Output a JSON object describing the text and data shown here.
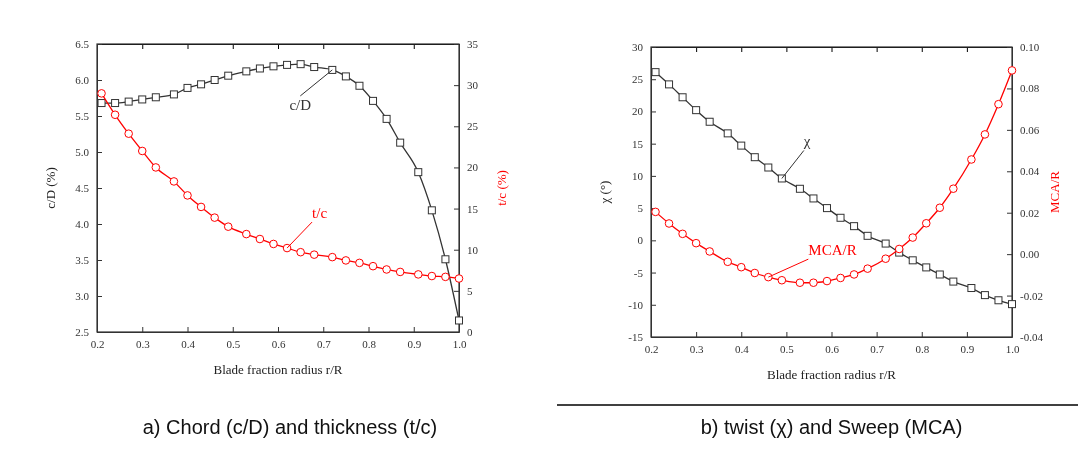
{
  "chart_data": [
    {
      "type": "line",
      "xlabel": "Blade fraction radius r/R",
      "ylabel": "c/D (%)",
      "y2label": "t/c (%)",
      "annotations": [
        "a) Chord (c/D) and thickness (t/c)"
      ],
      "x": [
        0.21,
        0.24,
        0.27,
        0.3,
        0.33,
        0.37,
        0.4,
        0.43,
        0.46,
        0.49,
        0.53,
        0.56,
        0.59,
        0.62,
        0.65,
        0.68,
        0.72,
        0.75,
        0.78,
        0.81,
        0.84,
        0.87,
        0.91,
        0.94,
        0.97,
        1.0
      ],
      "xlim": [
        0.2,
        1.0
      ],
      "xticks": [
        0.2,
        0.3,
        0.4,
        0.5,
        0.6,
        0.7,
        0.8,
        0.9,
        {
          "value": 1.0,
          "label": "1.0"
        }
      ],
      "ylim": [
        2.5,
        6.5
      ],
      "yticks": [
        2.5,
        {
          "value": 3,
          "label": "3.0"
        },
        3.5,
        {
          "value": 4,
          "label": "4.0"
        },
        4.5,
        {
          "value": 5,
          "label": "5.0"
        },
        5.5,
        {
          "value": 6,
          "label": "6.0"
        },
        6.5
      ],
      "y2lim": [
        0,
        35
      ],
      "y2ticks": [
        0,
        5,
        10,
        15,
        20,
        25,
        30,
        35
      ],
      "grid": false,
      "line_style": "solid",
      "series": [
        {
          "name": "c/D",
          "color": "#333333",
          "marker": "square",
          "values": [
            5.68,
            5.68,
            5.7,
            5.73,
            5.76,
            5.8,
            5.89,
            5.94,
            6.0,
            6.06,
            6.12,
            6.16,
            6.19,
            6.21,
            6.22,
            6.18,
            6.14,
            6.05,
            5.92,
            5.71,
            5.46,
            5.13,
            4.72,
            4.19,
            3.51,
            2.66
          ]
        },
        {
          "name": "t/c",
          "color": "#ff0000",
          "marker": "circle",
          "axis": "y2",
          "values": [
            29.0,
            26.4,
            24.1,
            22.0,
            20.0,
            18.3,
            16.6,
            15.2,
            13.9,
            12.8,
            11.9,
            11.3,
            10.7,
            10.2,
            9.7,
            9.4,
            9.1,
            8.7,
            8.4,
            8.0,
            7.6,
            7.3,
            7.0,
            6.8,
            6.7,
            6.5
          ]
        }
      ]
    },
    {
      "type": "line",
      "xlabel": "Blade fraction radius r/R",
      "ylabel": "χ (°)",
      "y2label": "MCA/R",
      "annotations": [
        "b) twist (χ) and Sweep (MCA)"
      ],
      "x": [
        0.21,
        0.24,
        0.27,
        0.3,
        0.33,
        0.37,
        0.4,
        0.43,
        0.46,
        0.49,
        0.53,
        0.56,
        0.59,
        0.62,
        0.65,
        0.68,
        0.72,
        0.75,
        0.78,
        0.81,
        0.84,
        0.87,
        0.91,
        0.94,
        0.97,
        1.0
      ],
      "xlim": [
        0.2,
        1.0
      ],
      "xticks": [
        0.2,
        0.3,
        0.4,
        0.5,
        0.6,
        0.7,
        0.8,
        0.9,
        {
          "value": 1.0,
          "label": "1.0"
        }
      ],
      "ylim": [
        -15,
        30
      ],
      "yticks": [
        -15,
        -10,
        -5,
        0,
        5,
        10,
        15,
        20,
        25,
        30
      ],
      "y2lim": [
        -0.04,
        0.1
      ],
      "y2ticks": [
        {
          "value": -0.04,
          "label": "-0.04"
        },
        {
          "value": -0.02,
          "label": "-0.02"
        },
        {
          "value": 0,
          "label": "0.00"
        },
        {
          "value": 0.02,
          "label": "0.02"
        },
        {
          "value": 0.04,
          "label": "0.04"
        },
        {
          "value": 0.06,
          "label": "0.06"
        },
        {
          "value": 0.08,
          "label": "0.08"
        },
        {
          "value": 0.1,
          "label": "0.10"
        }
      ],
      "grid": false,
      "line_style": "solid",
      "series": [
        {
          "name": "χ",
          "color": "#333333",
          "marker": "square",
          "values": [
            26.1,
            24.2,
            22.2,
            20.2,
            18.4,
            16.6,
            14.7,
            12.9,
            11.3,
            9.6,
            8.0,
            6.5,
            5.0,
            3.5,
            2.2,
            0.7,
            -0.5,
            -1.9,
            -3.1,
            -4.2,
            -5.3,
            -6.4,
            -7.4,
            -8.5,
            -9.3,
            -9.9
          ]
        },
        {
          "name": "MCA/R",
          "color": "#ff0000",
          "marker": "circle",
          "axis": "y2",
          "values": [
            0.0204,
            0.0148,
            0.0098,
            0.0053,
            0.0013,
            -0.0037,
            -0.0063,
            -0.0091,
            -0.0111,
            -0.0126,
            -0.0138,
            -0.0138,
            -0.013,
            -0.0115,
            -0.0098,
            -0.007,
            -0.0022,
            0.0025,
            0.008,
            0.0149,
            0.0224,
            0.0316,
            0.0457,
            0.0578,
            0.0724,
            0.0887
          ]
        }
      ]
    }
  ]
}
